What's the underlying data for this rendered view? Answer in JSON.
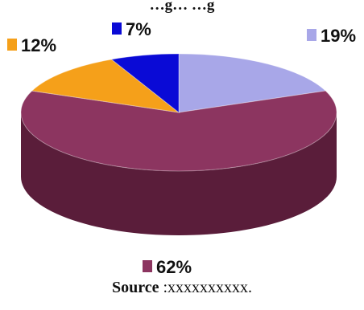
{
  "chart_data": {
    "type": "pie",
    "title": "…g… …g",
    "categories": [
      "19%",
      "62%",
      "12%",
      "7%"
    ],
    "values": [
      19,
      62,
      12,
      7
    ],
    "colors": [
      "#a8a7e8",
      "#8c3560",
      "#f5a01a",
      "#0a0ad6"
    ],
    "side_colors": [
      "#6c6ba0",
      "#5a1d3a",
      "#a86a0c",
      "#06068a"
    ],
    "legend": "none",
    "three_d": true
  },
  "source": {
    "label": "Source",
    "text": " :xxxxxxxxxx."
  }
}
